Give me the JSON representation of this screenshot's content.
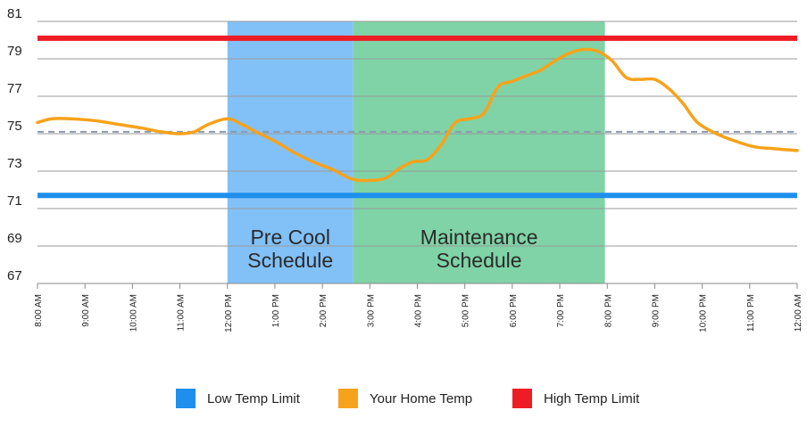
{
  "chart_data": {
    "type": "line",
    "y_ticks": [
      81,
      79,
      77,
      75,
      73,
      71,
      69,
      67
    ],
    "ylim": [
      67,
      81
    ],
    "x_labels": [
      "8:00 AM",
      "9:00 AM",
      "10:00 AM",
      "11:00 AM",
      "12:00 PM",
      "1:00 PM",
      "2:00 PM",
      "3:00 PM",
      "4:00 PM",
      "5:00 PM",
      "6:00 PM",
      "7:00 PM",
      "8:00 PM",
      "9:00 PM",
      "10:00 PM",
      "11:00 PM",
      "12:00 AM"
    ],
    "x_range_hours": [
      8,
      24
    ],
    "grid": "horizontal",
    "legend_placement": "bottom-center",
    "regions": [
      {
        "label_lines": [
          "Pre Cool",
          "Schedule"
        ],
        "start_hour": 12,
        "end_hour": 14.65,
        "color": "#82c1f8"
      },
      {
        "label_lines": [
          "Maintenance",
          "Schedule"
        ],
        "start_hour": 14.65,
        "end_hour": 19.95,
        "color": "#7fd3a6"
      }
    ],
    "reference_lines": [
      {
        "name": "High Temp Limit",
        "value": 80.1,
        "color": "#ee1c25",
        "style": "solid"
      },
      {
        "name": "Low Temp Limit",
        "value": 71.7,
        "color": "#1e8fec",
        "style": "solid"
      },
      {
        "value": 75.1,
        "color": "#8a9bb0",
        "style": "dashed"
      }
    ],
    "series": [
      {
        "name": "Your Home Temp",
        "color": "#f7a21b",
        "x": [
          8,
          8.3,
          8.7,
          9.2,
          9.7,
          10.2,
          10.6,
          11,
          11.3,
          11.6,
          12,
          12.3,
          12.6,
          13,
          13.4,
          13.8,
          14.2,
          14.6,
          14.9,
          15.3,
          15.6,
          15.9,
          16.2,
          16.5,
          16.8,
          17.1,
          17.4,
          17.7,
          18,
          18.3,
          18.6,
          18.9,
          19.2,
          19.5,
          19.8,
          20.1,
          20.4,
          20.7,
          21,
          21.3,
          21.6,
          21.9,
          22.3,
          22.7,
          23.1,
          23.5,
          24
        ],
        "y": [
          75.6,
          75.8,
          75.8,
          75.7,
          75.5,
          75.3,
          75.1,
          75.0,
          75.1,
          75.5,
          75.8,
          75.5,
          75.1,
          74.6,
          74.0,
          73.5,
          73.1,
          72.6,
          72.5,
          72.6,
          73.1,
          73.5,
          73.6,
          74.4,
          75.6,
          75.8,
          76.1,
          77.5,
          77.8,
          78.1,
          78.4,
          78.9,
          79.3,
          79.5,
          79.4,
          78.9,
          78.0,
          77.9,
          77.9,
          77.4,
          76.6,
          75.6,
          75.0,
          74.6,
          74.3,
          74.2,
          74.1
        ]
      }
    ],
    "legend": [
      {
        "label": "Low Temp Limit",
        "color": "#1e8fec"
      },
      {
        "label": "Your Home Temp",
        "color": "#f7a21b"
      },
      {
        "label": "High Temp Limit",
        "color": "#ee1c25"
      }
    ]
  }
}
